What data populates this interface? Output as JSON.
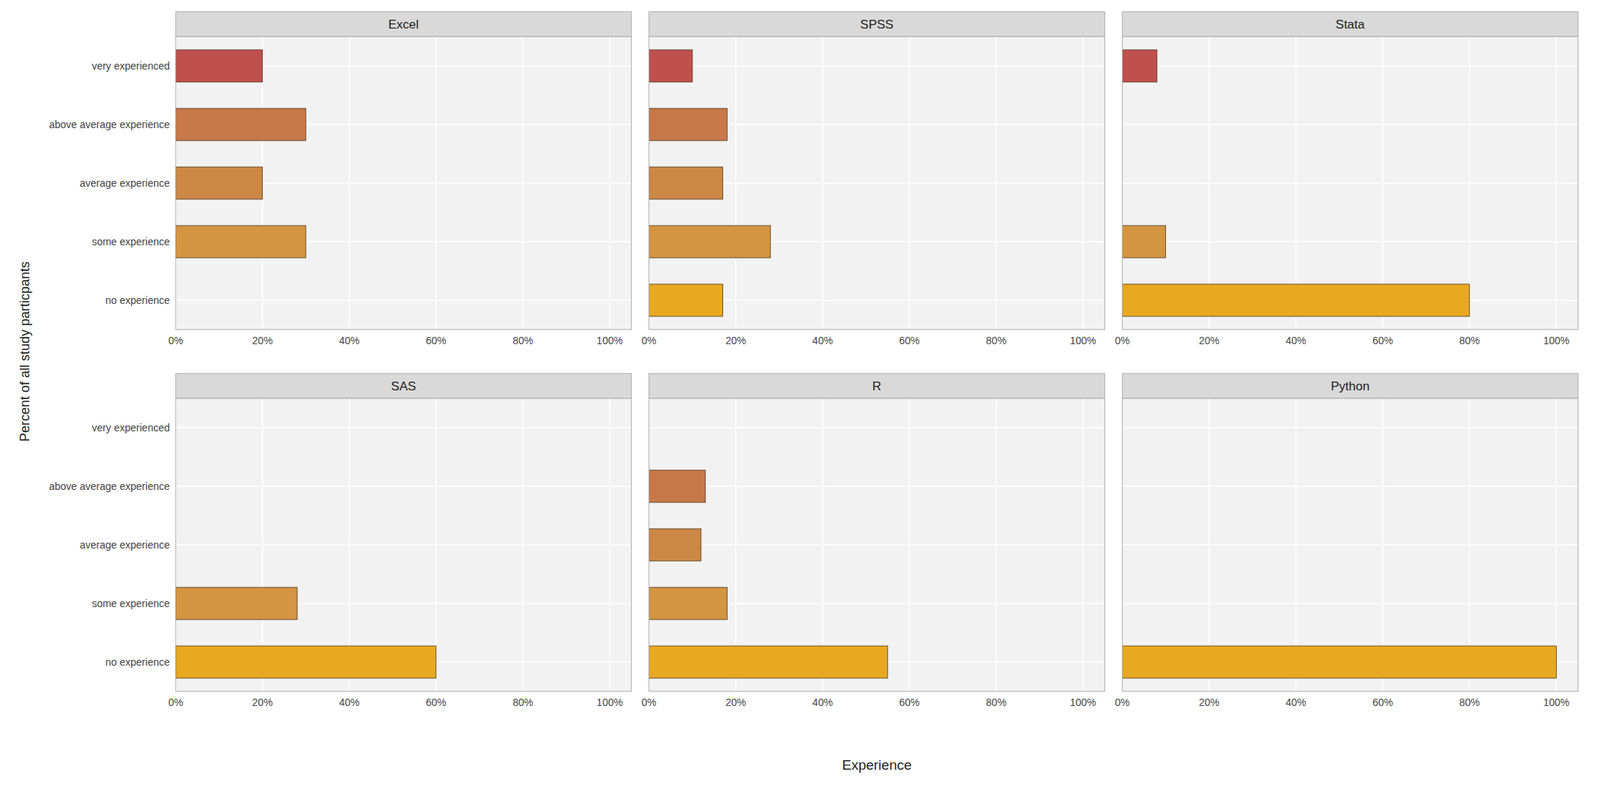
{
  "chart_data": [
    {
      "type": "bar",
      "orientation": "horizontal",
      "title": "Excel",
      "xlabel": "Experience",
      "ylabel": "Percent of all study particpants",
      "categories": [
        "very experienced",
        "above average experience",
        "average experience",
        "some experience",
        "no experience"
      ],
      "values": [
        20,
        30,
        20,
        30,
        0
      ],
      "colors": [
        "#c0504d",
        "#c87848",
        "#cc8844",
        "#d49540",
        "#e8a820"
      ],
      "xlim": [
        0,
        105
      ],
      "xticks": [
        {
          "value": 0,
          "label": "0%"
        },
        {
          "value": 20,
          "label": "20%"
        },
        {
          "value": 40,
          "label": "40%"
        },
        {
          "value": 60,
          "label": "60%"
        },
        {
          "value": 80,
          "label": "80%"
        },
        {
          "value": 100,
          "label": "100%"
        }
      ],
      "grid": true
    },
    {
      "type": "bar",
      "orientation": "horizontal",
      "title": "SPSS",
      "categories": [
        "very experienced",
        "above average experience",
        "average experience",
        "some experience",
        "no experience"
      ],
      "values": [
        10,
        18,
        17,
        28,
        17
      ],
      "colors": [
        "#c0504d",
        "#c87848",
        "#cc8844",
        "#d49540",
        "#e8a820"
      ],
      "xlim": [
        0,
        105
      ],
      "xticks": [
        {
          "value": 0,
          "label": "0%"
        },
        {
          "value": 20,
          "label": "20%"
        },
        {
          "value": 40,
          "label": "40%"
        },
        {
          "value": 60,
          "label": "60%"
        },
        {
          "value": 80,
          "label": "80%"
        },
        {
          "value": 100,
          "label": "100%"
        }
      ],
      "grid": true,
      "tick_labels": "x"
    },
    {
      "type": "bar",
      "orientation": "horizontal",
      "title": "Stata",
      "categories": [
        "very experienced",
        "above average experience",
        "average experience",
        "some experience",
        "no experience"
      ],
      "values": [
        8,
        0,
        0,
        10,
        80
      ],
      "colors": [
        "#c0504d",
        "#c87848",
        "#cc8844",
        "#d49540",
        "#e8a820"
      ],
      "xlim": [
        0,
        105
      ],
      "xticks": [
        {
          "value": 0,
          "label": "0%"
        },
        {
          "value": 20,
          "label": "20%"
        },
        {
          "value": 40,
          "label": "40%"
        },
        {
          "value": 60,
          "label": "60%"
        },
        {
          "value": 80,
          "label": "80%"
        },
        {
          "value": 100,
          "label": "100%"
        }
      ],
      "grid": true,
      "tick_labels": "x"
    },
    {
      "type": "bar",
      "orientation": "horizontal",
      "title": "SAS",
      "categories": [
        "very experienced",
        "above average experience",
        "average experience",
        "some experience",
        "no experience"
      ],
      "values": [
        0,
        0,
        0,
        28,
        60
      ],
      "colors": [
        "#c0504d",
        "#c87848",
        "#cc8844",
        "#d49540",
        "#e8a820"
      ],
      "xlim": [
        0,
        105
      ],
      "xticks": [
        {
          "value": 0,
          "label": "0%"
        },
        {
          "value": 20,
          "label": "20%"
        },
        {
          "value": 40,
          "label": "40%"
        },
        {
          "value": 60,
          "label": "60%"
        },
        {
          "value": 80,
          "label": "80%"
        },
        {
          "value": 100,
          "label": "100%"
        }
      ],
      "grid": true
    },
    {
      "type": "bar",
      "orientation": "horizontal",
      "title": "R",
      "categories": [
        "very experienced",
        "above average experience",
        "average experience",
        "some experience",
        "no experience"
      ],
      "values": [
        0,
        13,
        12,
        18,
        55
      ],
      "colors": [
        "#c0504d",
        "#c87848",
        "#cc8844",
        "#d49540",
        "#e8a820"
      ],
      "xlim": [
        0,
        105
      ],
      "xticks": [
        {
          "value": 0,
          "label": "0%"
        },
        {
          "value": 20,
          "label": "20%"
        },
        {
          "value": 40,
          "label": "40%"
        },
        {
          "value": 60,
          "label": "60%"
        },
        {
          "value": 80,
          "label": "80%"
        },
        {
          "value": 100,
          "label": "100%"
        }
      ],
      "grid": true,
      "tick_labels": "x"
    },
    {
      "type": "bar",
      "orientation": "horizontal",
      "title": "Python",
      "categories": [
        "very experienced",
        "above average experience",
        "average experience",
        "some experience",
        "no experience"
      ],
      "values": [
        0,
        0,
        0,
        0,
        100
      ],
      "colors": [
        "#c0504d",
        "#c87848",
        "#cc8844",
        "#d49540",
        "#e8a820"
      ],
      "xlim": [
        0,
        105
      ],
      "xticks": [
        {
          "value": 0,
          "label": "0%"
        },
        {
          "value": 20,
          "label": "20%"
        },
        {
          "value": 40,
          "label": "40%"
        },
        {
          "value": 60,
          "label": "60%"
        },
        {
          "value": 80,
          "label": "80%"
        },
        {
          "value": 100,
          "label": "100%"
        }
      ],
      "grid": true,
      "tick_labels": "x"
    }
  ]
}
